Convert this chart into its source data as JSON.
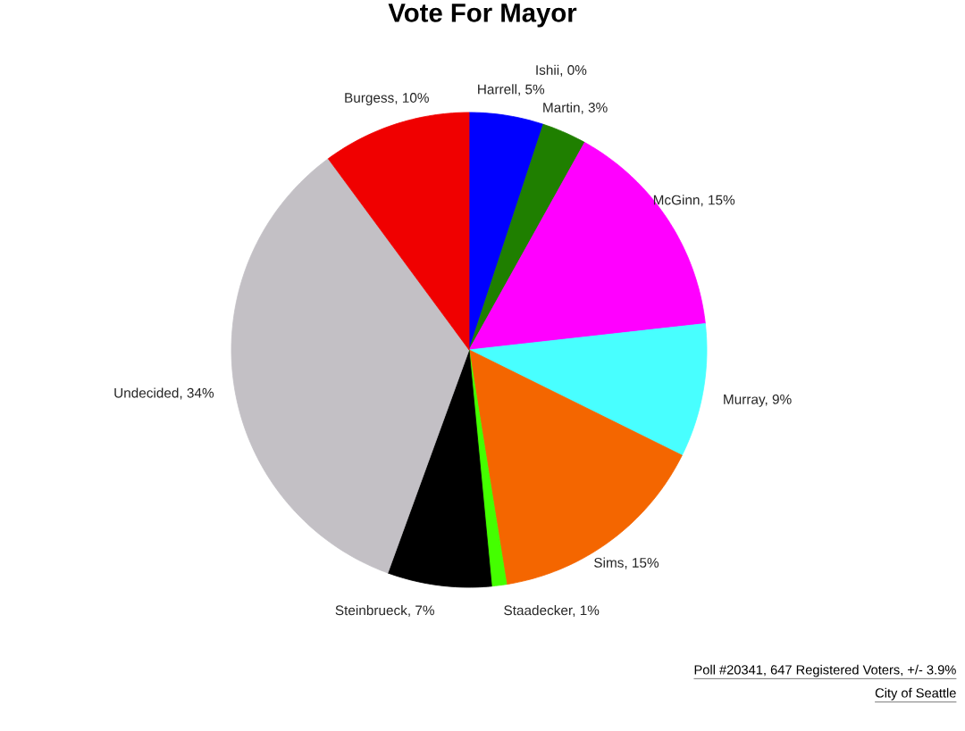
{
  "chart_data": {
    "type": "pie",
    "title": "Vote For Mayor",
    "categories": [
      "Harrell, 5%",
      "Ishii, 0%",
      "Martin, 3%",
      "McGinn, 15%",
      "Murray, 9%",
      "Sims, 15%",
      "Staadecker, 1%",
      "Steinbrueck, 7%",
      "Undecided, 34%",
      "Burgess, 10%"
    ],
    "values": [
      5,
      0,
      3,
      15,
      9,
      15,
      1,
      7,
      34,
      10
    ],
    "colors": [
      "#0000ff",
      null,
      "#1f7f00",
      "#ff00ff",
      "#48ffff",
      "#f46600",
      "#44ff00",
      "#000000",
      "#c3c0c5",
      "#f00000"
    ],
    "annotations": [
      "Poll #20341, 647 Registered Voters, +/- 3.9%",
      "City of Seattle"
    ]
  }
}
